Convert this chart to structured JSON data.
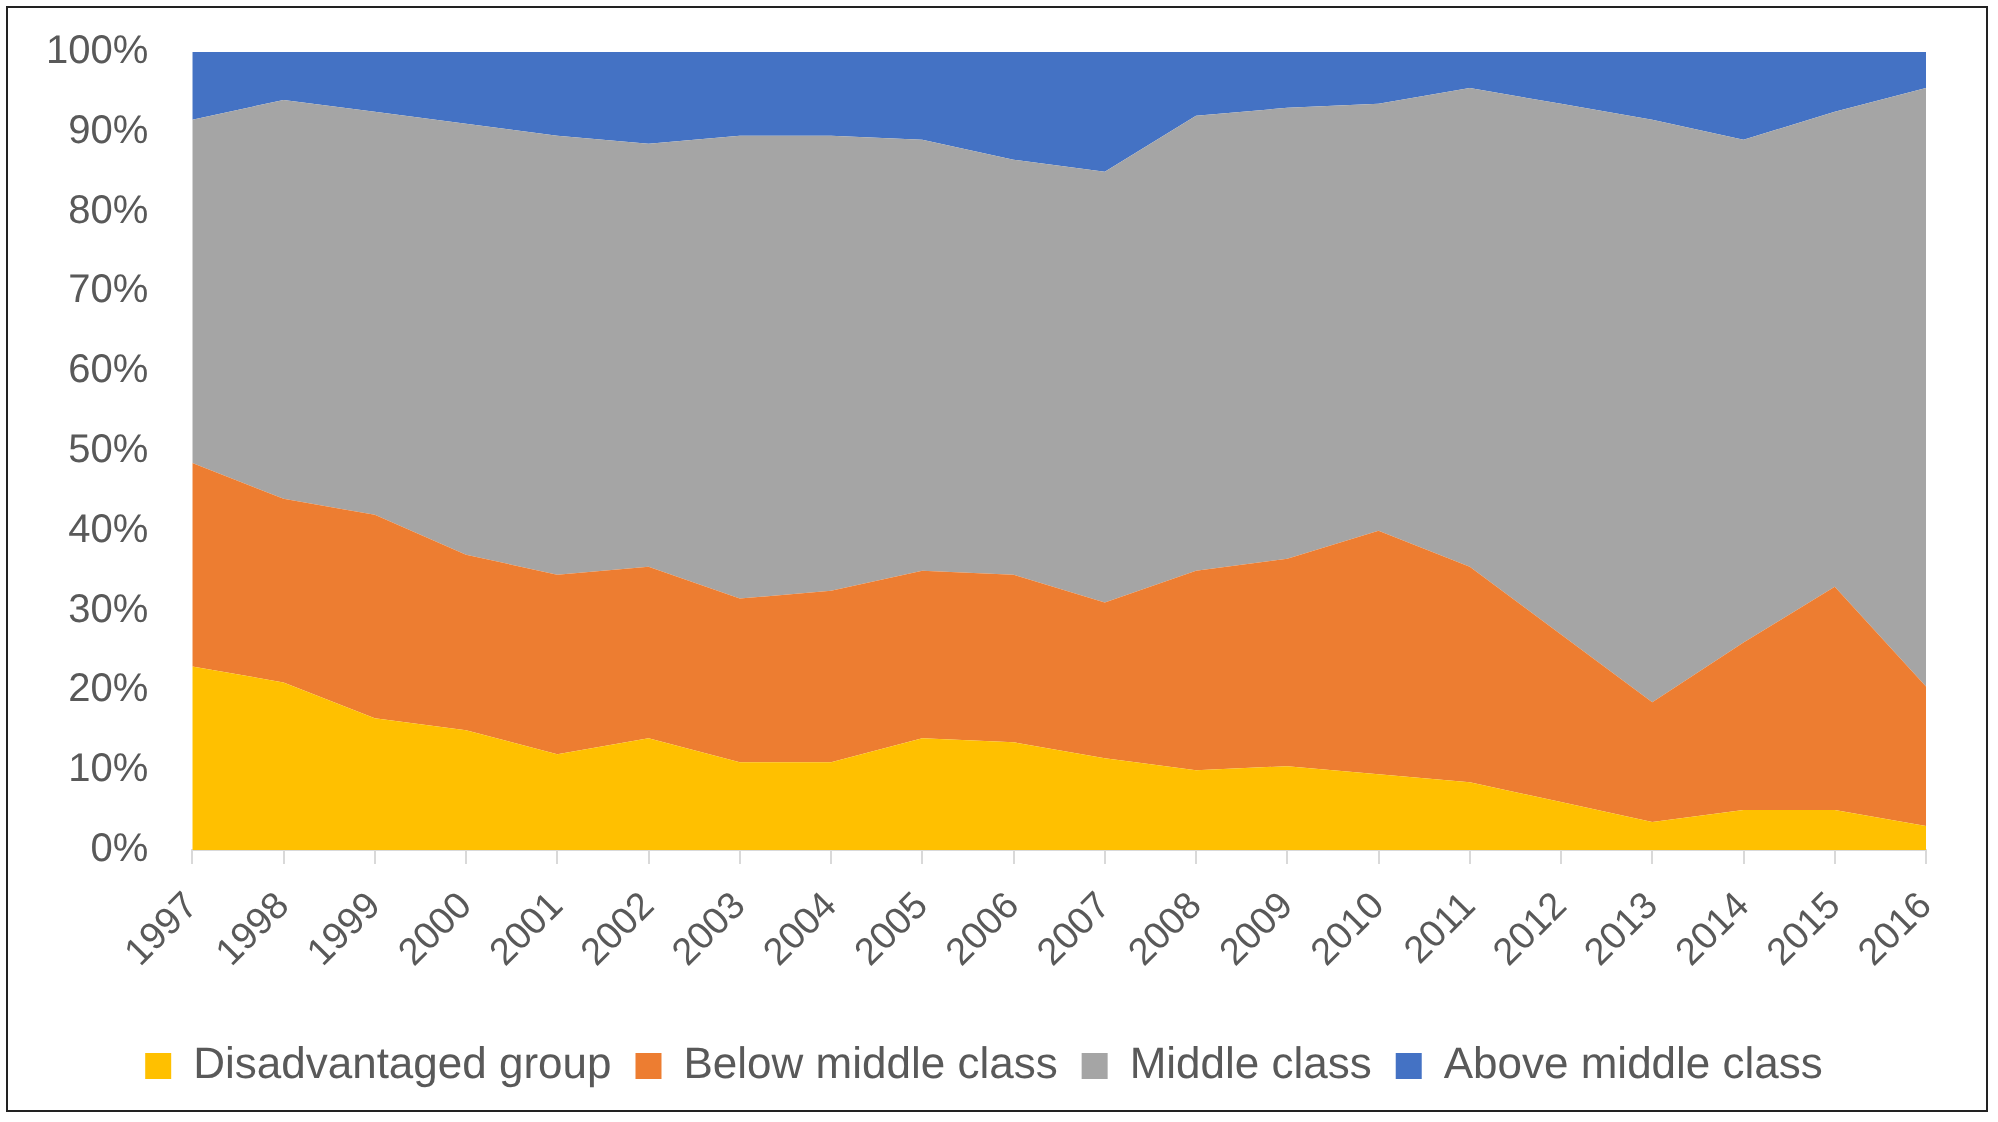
{
  "chart_data": {
    "type": "area",
    "stacked": true,
    "legend": "bottom",
    "categories": [
      "1997",
      "1998",
      "1999",
      "2000",
      "2001",
      "2002",
      "2003",
      "2004",
      "2005",
      "2006",
      "2007",
      "2008",
      "2009",
      "2010",
      "2011",
      "2012",
      "2013",
      "2014",
      "2015",
      "2016"
    ],
    "ylim": [
      0,
      100
    ],
    "yticks": [
      {
        "value": 0,
        "label": "0%"
      },
      {
        "value": 10,
        "label": "10%"
      },
      {
        "value": 20,
        "label": "20%"
      },
      {
        "value": 30,
        "label": "30%"
      },
      {
        "value": 40,
        "label": "40%"
      },
      {
        "value": 50,
        "label": "50%"
      },
      {
        "value": 60,
        "label": "60%"
      },
      {
        "value": 70,
        "label": "70%"
      },
      {
        "value": 80,
        "label": "80%"
      },
      {
        "value": 90,
        "label": "90%"
      },
      {
        "value": 100,
        "label": "100%"
      }
    ],
    "series": [
      {
        "name": "Disadvantaged group",
        "color": "#ffc000",
        "values": [
          23,
          21,
          16.5,
          15,
          12,
          14,
          11,
          11,
          14,
          13.5,
          11.5,
          10,
          10.5,
          9.5,
          8.5,
          6,
          3.5,
          5,
          5,
          3
        ]
      },
      {
        "name": "Below middle class",
        "color": "#ed7d31",
        "values": [
          25.5,
          23,
          25.5,
          22,
          22.5,
          21.5,
          20.5,
          21.5,
          21,
          21,
          19.5,
          25,
          26,
          30.5,
          27,
          21,
          15,
          21,
          28,
          17.5
        ]
      },
      {
        "name": "Middle class",
        "color": "#a5a5a5",
        "values": [
          43,
          50,
          50.5,
          54,
          55,
          53,
          58,
          57,
          54,
          52,
          54,
          57,
          56.5,
          53.5,
          60,
          66.5,
          73,
          63,
          59.5,
          75
        ]
      },
      {
        "name": "Above middle class",
        "color": "#4472c4",
        "values": [
          8.5,
          6,
          7.5,
          9,
          10.5,
          11.5,
          10.5,
          10.5,
          11,
          13.5,
          15,
          8,
          7,
          6.5,
          4.5,
          6.5,
          8.5,
          11,
          7.5,
          4.5
        ]
      }
    ]
  }
}
